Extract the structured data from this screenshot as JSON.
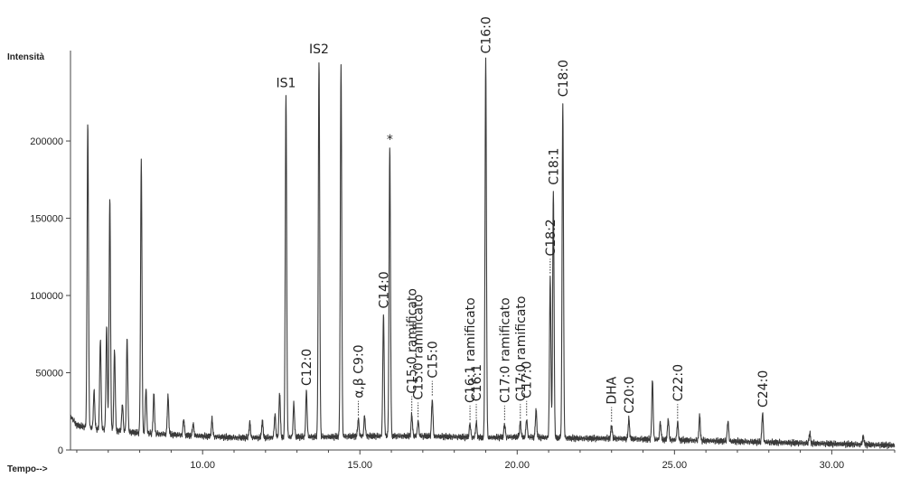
{
  "chart_data": {
    "type": "line",
    "ylabel": "Intensità",
    "xlabel": "Tempo-->",
    "xlim": [
      5.8,
      32.0
    ],
    "ylim": [
      0,
      255000
    ],
    "x_ticks": [
      {
        "value": 10,
        "label": "10.00"
      },
      {
        "value": 15,
        "label": "15.00"
      },
      {
        "value": 20,
        "label": "20.00"
      },
      {
        "value": 25,
        "label": "25.00"
      },
      {
        "value": 30,
        "label": "30.00"
      }
    ],
    "y_ticks": [
      {
        "value": 0,
        "label": "0"
      },
      {
        "value": 50000,
        "label": "50000"
      },
      {
        "value": 100000,
        "label": "100000"
      },
      {
        "value": 150000,
        "label": "150000"
      },
      {
        "value": 200000,
        "label": "200000"
      }
    ],
    "baseline": [
      [
        5.8,
        22000
      ],
      [
        6.0,
        16000
      ],
      [
        6.5,
        14000
      ],
      [
        7.0,
        13000
      ],
      [
        8.0,
        11000
      ],
      [
        9.0,
        10000
      ],
      [
        10.0,
        9000
      ],
      [
        11.0,
        8000
      ],
      [
        12.0,
        8000
      ],
      [
        13.0,
        8500
      ],
      [
        14.0,
        8500
      ],
      [
        15.0,
        9000
      ],
      [
        16.0,
        9000
      ],
      [
        17.0,
        9000
      ],
      [
        18.0,
        8500
      ],
      [
        19.0,
        8000
      ],
      [
        20.0,
        8500
      ],
      [
        21.0,
        8000
      ],
      [
        22.0,
        7500
      ],
      [
        23.0,
        7500
      ],
      [
        24.0,
        7000
      ],
      [
        25.0,
        6500
      ],
      [
        26.0,
        6000
      ],
      [
        27.0,
        5500
      ],
      [
        28.0,
        5000
      ],
      [
        29.0,
        4500
      ],
      [
        30.0,
        4000
      ],
      [
        31.0,
        3500
      ],
      [
        32.0,
        3000
      ]
    ],
    "peaks": [
      {
        "x": 6.35,
        "y": 212000
      },
      {
        "x": 6.55,
        "y": 38000
      },
      {
        "x": 6.75,
        "y": 72000
      },
      {
        "x": 6.95,
        "y": 80000
      },
      {
        "x": 7.05,
        "y": 164000
      },
      {
        "x": 7.2,
        "y": 65000
      },
      {
        "x": 7.45,
        "y": 30000
      },
      {
        "x": 7.6,
        "y": 72000
      },
      {
        "x": 8.05,
        "y": 187000
      },
      {
        "x": 8.2,
        "y": 40000
      },
      {
        "x": 8.45,
        "y": 36000
      },
      {
        "x": 8.9,
        "y": 35000
      },
      {
        "x": 9.4,
        "y": 20000
      },
      {
        "x": 9.7,
        "y": 17000
      },
      {
        "x": 10.3,
        "y": 20000
      },
      {
        "x": 11.5,
        "y": 18000
      },
      {
        "x": 11.9,
        "y": 19000
      },
      {
        "x": 12.3,
        "y": 23000
      },
      {
        "x": 12.45,
        "y": 37000
      },
      {
        "x": 12.65,
        "y": 230000
      },
      {
        "x": 12.9,
        "y": 30000
      },
      {
        "x": 13.3,
        "y": 38000
      },
      {
        "x": 13.7,
        "y": 252000
      },
      {
        "x": 14.4,
        "y": 249000
      },
      {
        "x": 14.95,
        "y": 20000
      },
      {
        "x": 15.15,
        "y": 22000
      },
      {
        "x": 15.75,
        "y": 88000
      },
      {
        "x": 15.95,
        "y": 196000
      },
      {
        "x": 16.65,
        "y": 23000
      },
      {
        "x": 16.85,
        "y": 19000
      },
      {
        "x": 17.3,
        "y": 33000
      },
      {
        "x": 18.5,
        "y": 17000
      },
      {
        "x": 18.7,
        "y": 18000
      },
      {
        "x": 19.0,
        "y": 253000
      },
      {
        "x": 19.6,
        "y": 17000
      },
      {
        "x": 20.1,
        "y": 18000
      },
      {
        "x": 20.3,
        "y": 20000
      },
      {
        "x": 20.6,
        "y": 26000
      },
      {
        "x": 21.05,
        "y": 112000
      },
      {
        "x": 21.15,
        "y": 168000
      },
      {
        "x": 21.45,
        "y": 225000
      },
      {
        "x": 23.0,
        "y": 16000
      },
      {
        "x": 23.55,
        "y": 20000
      },
      {
        "x": 24.3,
        "y": 45000
      },
      {
        "x": 24.55,
        "y": 18000
      },
      {
        "x": 24.8,
        "y": 20000
      },
      {
        "x": 25.1,
        "y": 18000
      },
      {
        "x": 25.8,
        "y": 22000
      },
      {
        "x": 26.7,
        "y": 19000
      },
      {
        "x": 27.8,
        "y": 24000
      },
      {
        "x": 29.3,
        "y": 11000
      },
      {
        "x": 31.0,
        "y": 9000
      }
    ],
    "annotations": [
      {
        "text": "IS1",
        "x": 12.65,
        "y": 230000,
        "orientation": "horizontal",
        "marker": "none"
      },
      {
        "text": "IS2",
        "x": 13.7,
        "y": 252000,
        "orientation": "horizontal",
        "marker": "none"
      },
      {
        "text": "*",
        "x": 15.95,
        "y": 196000,
        "orientation": "horizontal",
        "marker": "none"
      },
      {
        "text": "C12:0",
        "x": 13.3,
        "y": 38000,
        "orientation": "vertical",
        "marker": "none"
      },
      {
        "text": "α,β C9:0",
        "x": 14.95,
        "y": 20000,
        "orientation": "vertical",
        "marker": "dotted"
      },
      {
        "text": "C14:0",
        "x": 15.75,
        "y": 88000,
        "orientation": "vertical",
        "marker": "none"
      },
      {
        "text": "C15:0 ramificato",
        "x": 16.65,
        "y": 23000,
        "orientation": "vertical",
        "marker": "dotted"
      },
      {
        "text": "C15:0 ramificato",
        "x": 16.85,
        "y": 19000,
        "orientation": "vertical",
        "marker": "dotted"
      },
      {
        "text": "C15:0",
        "x": 17.3,
        "y": 33000,
        "orientation": "vertical",
        "marker": "dotted"
      },
      {
        "text": "C16:1 ramificato",
        "x": 18.5,
        "y": 17000,
        "orientation": "vertical",
        "marker": "dotted"
      },
      {
        "text": "C16:1",
        "x": 18.7,
        "y": 18000,
        "orientation": "vertical",
        "marker": "dotted"
      },
      {
        "text": "C16:0",
        "x": 19.0,
        "y": 253000,
        "orientation": "vertical",
        "marker": "none"
      },
      {
        "text": "C17:0 ramificato",
        "x": 19.6,
        "y": 17000,
        "orientation": "vertical",
        "marker": "dotted"
      },
      {
        "text": "C17:0 ramificato",
        "x": 20.1,
        "y": 18000,
        "orientation": "vertical",
        "marker": "dotted"
      },
      {
        "text": "C17:0",
        "x": 20.3,
        "y": 20000,
        "orientation": "vertical",
        "marker": "dotted"
      },
      {
        "text": "C18:2",
        "x": 21.05,
        "y": 112000,
        "orientation": "vertical",
        "marker": "dotted"
      },
      {
        "text": "C18:1",
        "x": 21.15,
        "y": 168000,
        "orientation": "vertical",
        "marker": "none"
      },
      {
        "text": "C18:0",
        "x": 21.45,
        "y": 225000,
        "orientation": "vertical",
        "marker": "none"
      },
      {
        "text": "DHA",
        "x": 23.0,
        "y": 16000,
        "orientation": "vertical",
        "marker": "dotted"
      },
      {
        "text": "C20:0",
        "x": 23.55,
        "y": 20000,
        "orientation": "vertical",
        "marker": "none"
      },
      {
        "text": "C22:0",
        "x": 25.1,
        "y": 18000,
        "orientation": "vertical",
        "marker": "dotted"
      },
      {
        "text": "C24:0",
        "x": 27.8,
        "y": 24000,
        "orientation": "vertical",
        "marker": "none"
      }
    ]
  }
}
